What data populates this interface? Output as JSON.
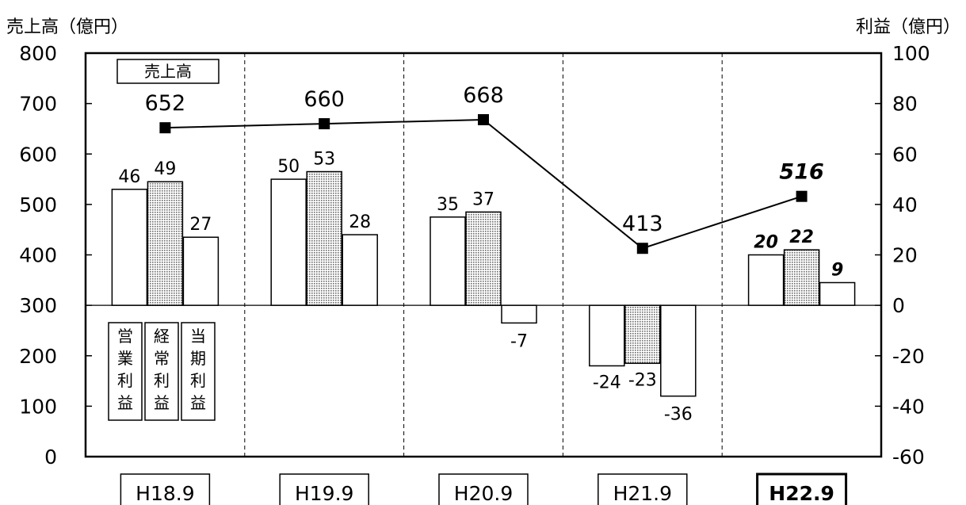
{
  "chart_data": {
    "type": "bar+line",
    "left_axis_title": "売上高（億円）",
    "right_axis_title": "利益（億円）",
    "left_axis": {
      "ylim": [
        0,
        800
      ],
      "ticks": [
        "0",
        "100",
        "200",
        "300",
        "400",
        "500",
        "600",
        "700",
        "800"
      ]
    },
    "right_axis": {
      "ylim": [
        -60,
        100
      ],
      "ticks": [
        "-60",
        "-40",
        "-20",
        "0",
        "20",
        "40",
        "60",
        "80",
        "100"
      ]
    },
    "categories": [
      "H18.9",
      "H19.9",
      "H20.9",
      "H21.9",
      "H22.9"
    ],
    "highlighted_category": "H22.9",
    "line_series": {
      "name": "売上高",
      "axis": "left",
      "values": [
        652,
        660,
        668,
        413,
        516
      ],
      "labels": [
        "652",
        "660",
        "668",
        "413",
        "516"
      ]
    },
    "bar_series": [
      {
        "name": "営業利益",
        "axis": "right",
        "values": [
          46,
          50,
          35,
          -24,
          20
        ],
        "labels": [
          "46",
          "50",
          "35",
          "-24",
          "20"
        ],
        "fill": "#ffffff"
      },
      {
        "name": "経常利益",
        "axis": "right",
        "values": [
          49,
          53,
          37,
          -23,
          22
        ],
        "labels": [
          "49",
          "53",
          "37",
          "-23",
          "22"
        ],
        "fill": "dotted"
      },
      {
        "name": "当期利益",
        "axis": "right",
        "values": [
          27,
          28,
          -7,
          -36,
          9
        ],
        "labels": [
          "27",
          "28",
          "-7",
          "-36",
          "9"
        ],
        "fill": "#ffffff"
      }
    ],
    "legend": {
      "line_label": "売上高",
      "bar_labels": [
        "営業利益",
        "経常利益",
        "当期利益"
      ]
    },
    "grid": "vertical-dashed-separators"
  }
}
